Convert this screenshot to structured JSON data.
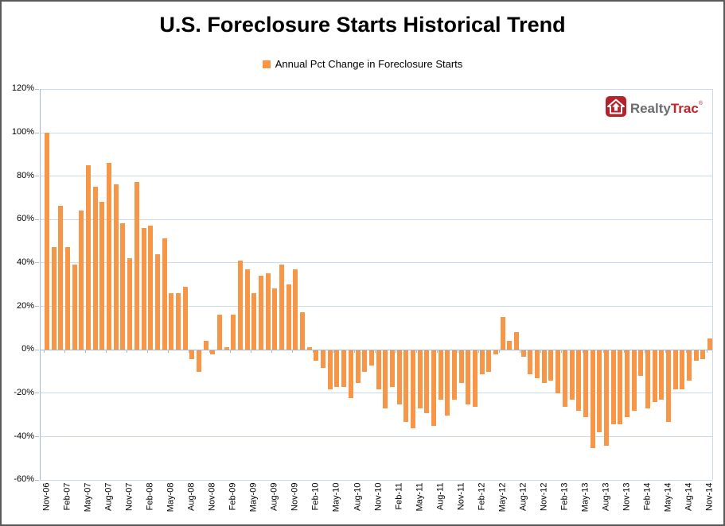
{
  "title": "U.S. Foreclosure Starts Historical Trend",
  "legend": {
    "label": "Annual Pct Change in Foreclosure Starts",
    "swatch_color": "#F79646"
  },
  "logo": {
    "realty": "Realty",
    "trac": "Trac",
    "reg": "®",
    "red": "#C02428",
    "gray": "#6B6C6E"
  },
  "chart_data": {
    "type": "bar",
    "title": "U.S. Foreclosure Starts Historical Trend",
    "series_name": "Annual Pct Change in Foreclosure Starts",
    "unit": "percent",
    "bar_color": "#F79646",
    "grid": true,
    "legend_position": "top",
    "ylim": [
      -60,
      120
    ],
    "y_tick_values": [
      120,
      100,
      80,
      60,
      40,
      20,
      0,
      -20,
      -40,
      -60
    ],
    "y_ticks": [
      "120%",
      "100%",
      "80%",
      "60%",
      "40%",
      "20%",
      "0%",
      "-20%",
      "-40%",
      "-60%"
    ],
    "x_tick_every": 3,
    "x_tick_labels": [
      "Nov-06",
      "Feb-07",
      "May-07",
      "Aug-07",
      "Nov-07",
      "Feb-08",
      "May-08",
      "Aug-08",
      "Nov-08",
      "Feb-09",
      "May-09",
      "Aug-09",
      "Nov-09",
      "Feb-10",
      "May-10",
      "Aug-10",
      "Nov-10",
      "Feb-11",
      "May-11",
      "Aug-11",
      "Nov-11",
      "Feb-12",
      "May-12",
      "Aug-12",
      "Nov-12",
      "Feb-13",
      "May-13",
      "Aug-13",
      "Nov-13",
      "Feb-14",
      "May-14",
      "Aug-14",
      "Nov-14"
    ],
    "categories": [
      "Nov-06",
      "Dec-06",
      "Jan-07",
      "Feb-07",
      "Mar-07",
      "Apr-07",
      "May-07",
      "Jun-07",
      "Jul-07",
      "Aug-07",
      "Sep-07",
      "Oct-07",
      "Nov-07",
      "Dec-07",
      "Jan-08",
      "Feb-08",
      "Mar-08",
      "Apr-08",
      "May-08",
      "Jun-08",
      "Jul-08",
      "Aug-08",
      "Sep-08",
      "Oct-08",
      "Nov-08",
      "Dec-08",
      "Jan-09",
      "Feb-09",
      "Mar-09",
      "Apr-09",
      "May-09",
      "Jun-09",
      "Jul-09",
      "Aug-09",
      "Sep-09",
      "Oct-09",
      "Nov-09",
      "Dec-09",
      "Jan-10",
      "Feb-10",
      "Mar-10",
      "Apr-10",
      "May-10",
      "Jun-10",
      "Jul-10",
      "Aug-10",
      "Sep-10",
      "Oct-10",
      "Nov-10",
      "Dec-10",
      "Jan-11",
      "Feb-11",
      "Mar-11",
      "Apr-11",
      "May-11",
      "Jun-11",
      "Jul-11",
      "Aug-11",
      "Sep-11",
      "Oct-11",
      "Nov-11",
      "Dec-11",
      "Jan-12",
      "Feb-12",
      "Mar-12",
      "Apr-12",
      "May-12",
      "Jun-12",
      "Jul-12",
      "Aug-12",
      "Sep-12",
      "Oct-12",
      "Nov-12",
      "Dec-12",
      "Jan-13",
      "Feb-13",
      "Mar-13",
      "Apr-13",
      "May-13",
      "Jun-13",
      "Jul-13",
      "Aug-13",
      "Sep-13",
      "Oct-13",
      "Nov-13",
      "Dec-13",
      "Jan-14",
      "Feb-14",
      "Mar-14",
      "Apr-14",
      "May-14",
      "Jun-14",
      "Jul-14",
      "Aug-14",
      "Sep-14",
      "Oct-14",
      "Nov-14"
    ],
    "values": [
      100,
      47,
      66,
      47,
      39,
      64,
      85,
      75,
      68,
      86,
      76,
      58,
      42,
      77,
      56,
      57,
      44,
      51,
      26,
      26,
      29,
      -4,
      -10,
      4,
      -2,
      16,
      1,
      16,
      41,
      37,
      26,
      34,
      35,
      28,
      39,
      30,
      37,
      17,
      1,
      -5,
      -8,
      -18,
      -17,
      -17,
      -22,
      -15,
      -10,
      -7,
      -18,
      -27,
      -17,
      -25,
      -33,
      -36,
      -27,
      -29,
      -35,
      -23,
      -30,
      -23,
      -15,
      -25,
      -26,
      -11,
      -10,
      -2,
      15,
      4,
      8,
      -3,
      -11,
      -13,
      -15,
      -14,
      -20,
      -26,
      -23,
      -28,
      -31,
      -45,
      -38,
      -44,
      -34,
      -34,
      -31,
      -28,
      -12,
      -27,
      -24,
      -23,
      -33,
      -18,
      -18,
      -14,
      -5,
      -4,
      5
    ]
  }
}
